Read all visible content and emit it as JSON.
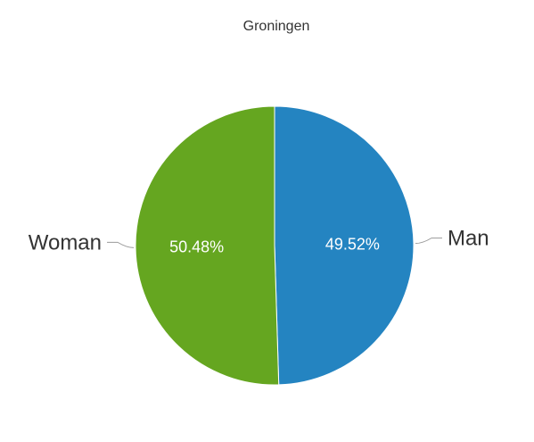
{
  "chart_data": {
    "type": "pie",
    "title": "Groningen",
    "slices": [
      {
        "label": "Man",
        "value": 49.52,
        "display": "49.52%",
        "color": "#2484c1"
      },
      {
        "label": "Woman",
        "value": 50.48,
        "display": "50.48%",
        "color": "#65a620"
      }
    ],
    "start_angle_deg": 0,
    "direction": "clockwise",
    "label_color": "#333333",
    "value_label_color": "#ffffff",
    "leader_line_color": "#999999"
  }
}
